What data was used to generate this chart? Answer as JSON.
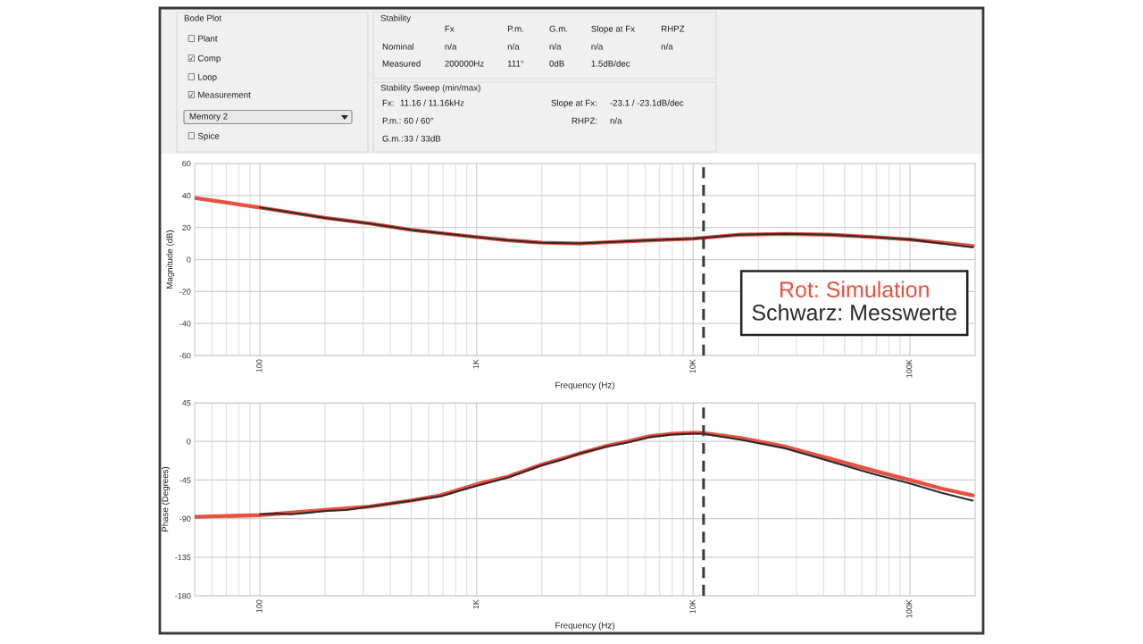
{
  "chart_data": [
    {
      "type": "other",
      "title": "Bode Plot",
      "annotations": [
        "☐ Plant",
        "☑ Comp",
        "☐ Loop",
        "☑ Measurement",
        "Memory 2",
        "☐ Spice"
      ]
    },
    {
      "type": "other",
      "title": "Stability",
      "annotations": [
        "Fx",
        "P.m.",
        "G.m.",
        "Slope at Fx",
        "RHPZ",
        "Nominal",
        "n/a",
        "n/a",
        "n/a",
        "n/a",
        "n/a",
        "Measured",
        "200000Hz",
        "111°",
        "0dB",
        "1.5dB/dec"
      ]
    },
    {
      "type": "other",
      "title": "Stability Sweep (min/max)",
      "annotations": [
        "Fx:",
        "11.16 / 11.16kHz",
        "P.m.:",
        "60 / 60°",
        "G.m.:",
        "33 / 33dB",
        "Slope at Fx:",
        "-23.1 / -23.1dB/dec",
        "RHPZ:",
        "n/a"
      ]
    },
    {
      "type": "line",
      "xlabel": "Frequency (Hz)",
      "ylabel": "Magnitude (dB)",
      "log": "x",
      "grid": true,
      "legend": "bottom right",
      "xlim": [
        50,
        200000
      ],
      "ylim": [
        -60,
        60
      ],
      "xticks": [
        {
          "value": 60,
          "label": null
        },
        {
          "value": 70,
          "label": null
        },
        {
          "value": 80,
          "label": null
        },
        {
          "value": 90,
          "label": null
        },
        100,
        {
          "value": 200,
          "label": null
        },
        {
          "value": 300,
          "label": null
        },
        {
          "value": 400,
          "label": null
        },
        {
          "value": 500,
          "label": null
        },
        {
          "value": 600,
          "label": null
        },
        {
          "value": 700,
          "label": null
        },
        {
          "value": 800,
          "label": null
        },
        {
          "value": 900,
          "label": null
        },
        {
          "value": 1000,
          "label": "1K"
        },
        {
          "value": 2000,
          "label": null
        },
        {
          "value": 3000,
          "label": null
        },
        {
          "value": 4000,
          "label": null
        },
        {
          "value": 5000,
          "label": null
        },
        {
          "value": 6000,
          "label": null
        },
        {
          "value": 7000,
          "label": null
        },
        {
          "value": 8000,
          "label": null
        },
        {
          "value": 9000,
          "label": null
        },
        {
          "value": 10000,
          "label": "10K"
        },
        {
          "value": 20000,
          "label": null
        },
        {
          "value": 30000,
          "label": null
        },
        {
          "value": 40000,
          "label": null
        },
        {
          "value": 50000,
          "label": null
        },
        {
          "value": 60000,
          "label": null
        },
        {
          "value": 70000,
          "label": null
        },
        {
          "value": 80000,
          "label": null
        },
        {
          "value": 90000,
          "label": null
        },
        {
          "value": 100000,
          "label": "100K"
        }
      ],
      "yticks": [
        -60,
        -40,
        -20,
        0,
        20,
        40,
        60
      ],
      "ref_lines": [
        {
          "axis": "x",
          "value": 11160,
          "color": "#3c3c3c",
          "line_style": "dashed"
        }
      ],
      "series": [
        {
          "name": "Rot: Simulation",
          "color": "#e8503f",
          "x": [
            50,
            100,
            200,
            320,
            500,
            1000,
            1400,
            2000,
            3000,
            4300,
            6300,
            10000,
            11000,
            16500,
            26500,
            42500,
            68000,
            100000,
            140000,
            195000
          ],
          "values": [
            38.5,
            32.5,
            26,
            22.5,
            18.5,
            14,
            12,
            10.5,
            10,
            11,
            12,
            13,
            13.5,
            15.5,
            16,
            15.5,
            14,
            12.5,
            10.5,
            8.5
          ]
        },
        {
          "name": "Schwarz: Messwerte",
          "color": "#2b2b2b",
          "x": [
            100,
            200,
            320,
            500,
            1000,
            1400,
            2000,
            3000,
            4300,
            6300,
            10000,
            11000,
            16500,
            26500,
            42500,
            68000,
            100000,
            140000,
            195000
          ],
          "values": [
            32.5,
            26,
            22.5,
            18.5,
            14,
            12,
            10.5,
            10,
            11,
            12,
            13,
            13.5,
            15.5,
            16,
            15.5,
            14,
            12.5,
            10,
            7.5
          ]
        }
      ]
    },
    {
      "type": "line",
      "xlabel": "Frequency (Hz)",
      "ylabel": "Phase (Degrees)",
      "log": "x",
      "grid": true,
      "xlim": [
        50,
        200000
      ],
      "ylim": [
        -180,
        45
      ],
      "xticks": [
        {
          "value": 60,
          "label": null
        },
        {
          "value": 70,
          "label": null
        },
        {
          "value": 80,
          "label": null
        },
        {
          "value": 90,
          "label": null
        },
        100,
        {
          "value": 200,
          "label": null
        },
        {
          "value": 300,
          "label": null
        },
        {
          "value": 400,
          "label": null
        },
        {
          "value": 500,
          "label": null
        },
        {
          "value": 600,
          "label": null
        },
        {
          "value": 700,
          "label": null
        },
        {
          "value": 800,
          "label": null
        },
        {
          "value": 900,
          "label": null
        },
        {
          "value": 1000,
          "label": "1K"
        },
        {
          "value": 2000,
          "label": null
        },
        {
          "value": 3000,
          "label": null
        },
        {
          "value": 4000,
          "label": null
        },
        {
          "value": 5000,
          "label": null
        },
        {
          "value": 6000,
          "label": null
        },
        {
          "value": 7000,
          "label": null
        },
        {
          "value": 8000,
          "label": null
        },
        {
          "value": 9000,
          "label": null
        },
        {
          "value": 10000,
          "label": "10K"
        },
        {
          "value": 20000,
          "label": null
        },
        {
          "value": 30000,
          "label": null
        },
        {
          "value": 40000,
          "label": null
        },
        {
          "value": 50000,
          "label": null
        },
        {
          "value": 60000,
          "label": null
        },
        {
          "value": 70000,
          "label": null
        },
        {
          "value": 80000,
          "label": null
        },
        {
          "value": 90000,
          "label": null
        },
        {
          "value": 100000,
          "label": "100K"
        }
      ],
      "yticks": [
        -180,
        -135,
        -90,
        -45,
        0,
        45
      ],
      "ref_lines": [
        {
          "axis": "x",
          "value": 11160,
          "color": "#3c3c3c",
          "line_style": "dashed"
        }
      ],
      "series": [
        {
          "color": "#e8503f",
          "x": [
            50,
            100,
            200,
            320,
            500,
            680,
            1000,
            1400,
            2000,
            2500,
            3000,
            4000,
            5000,
            6300,
            8000,
            10000,
            11000,
            16500,
            26500,
            42500,
            68000,
            100000,
            140000,
            195000
          ],
          "values": [
            -88,
            -86,
            -80,
            -76,
            -69,
            -63,
            -50,
            -41,
            -27,
            -20,
            -14,
            -5,
            0,
            6,
            9,
            10,
            10,
            4,
            -6,
            -20,
            -34,
            -45,
            -55,
            -63
          ]
        },
        {
          "color": "#2b2b2b",
          "x": [
            100,
            120,
            140,
            170,
            200,
            250,
            320,
            500,
            680,
            1000,
            1400,
            2000,
            2500,
            3000,
            4000,
            5000,
            6300,
            8000,
            10000,
            11000,
            16500,
            26500,
            42500,
            68000,
            100000,
            140000,
            195000
          ],
          "values": [
            -85,
            -84,
            -85,
            -83,
            -81,
            -80,
            -76,
            -69,
            -64,
            -52,
            -42,
            -28,
            -21,
            -14,
            -6,
            -1,
            5,
            8,
            9,
            9,
            2,
            -8,
            -23,
            -38,
            -49,
            -60,
            -69
          ]
        }
      ]
    }
  ]
}
